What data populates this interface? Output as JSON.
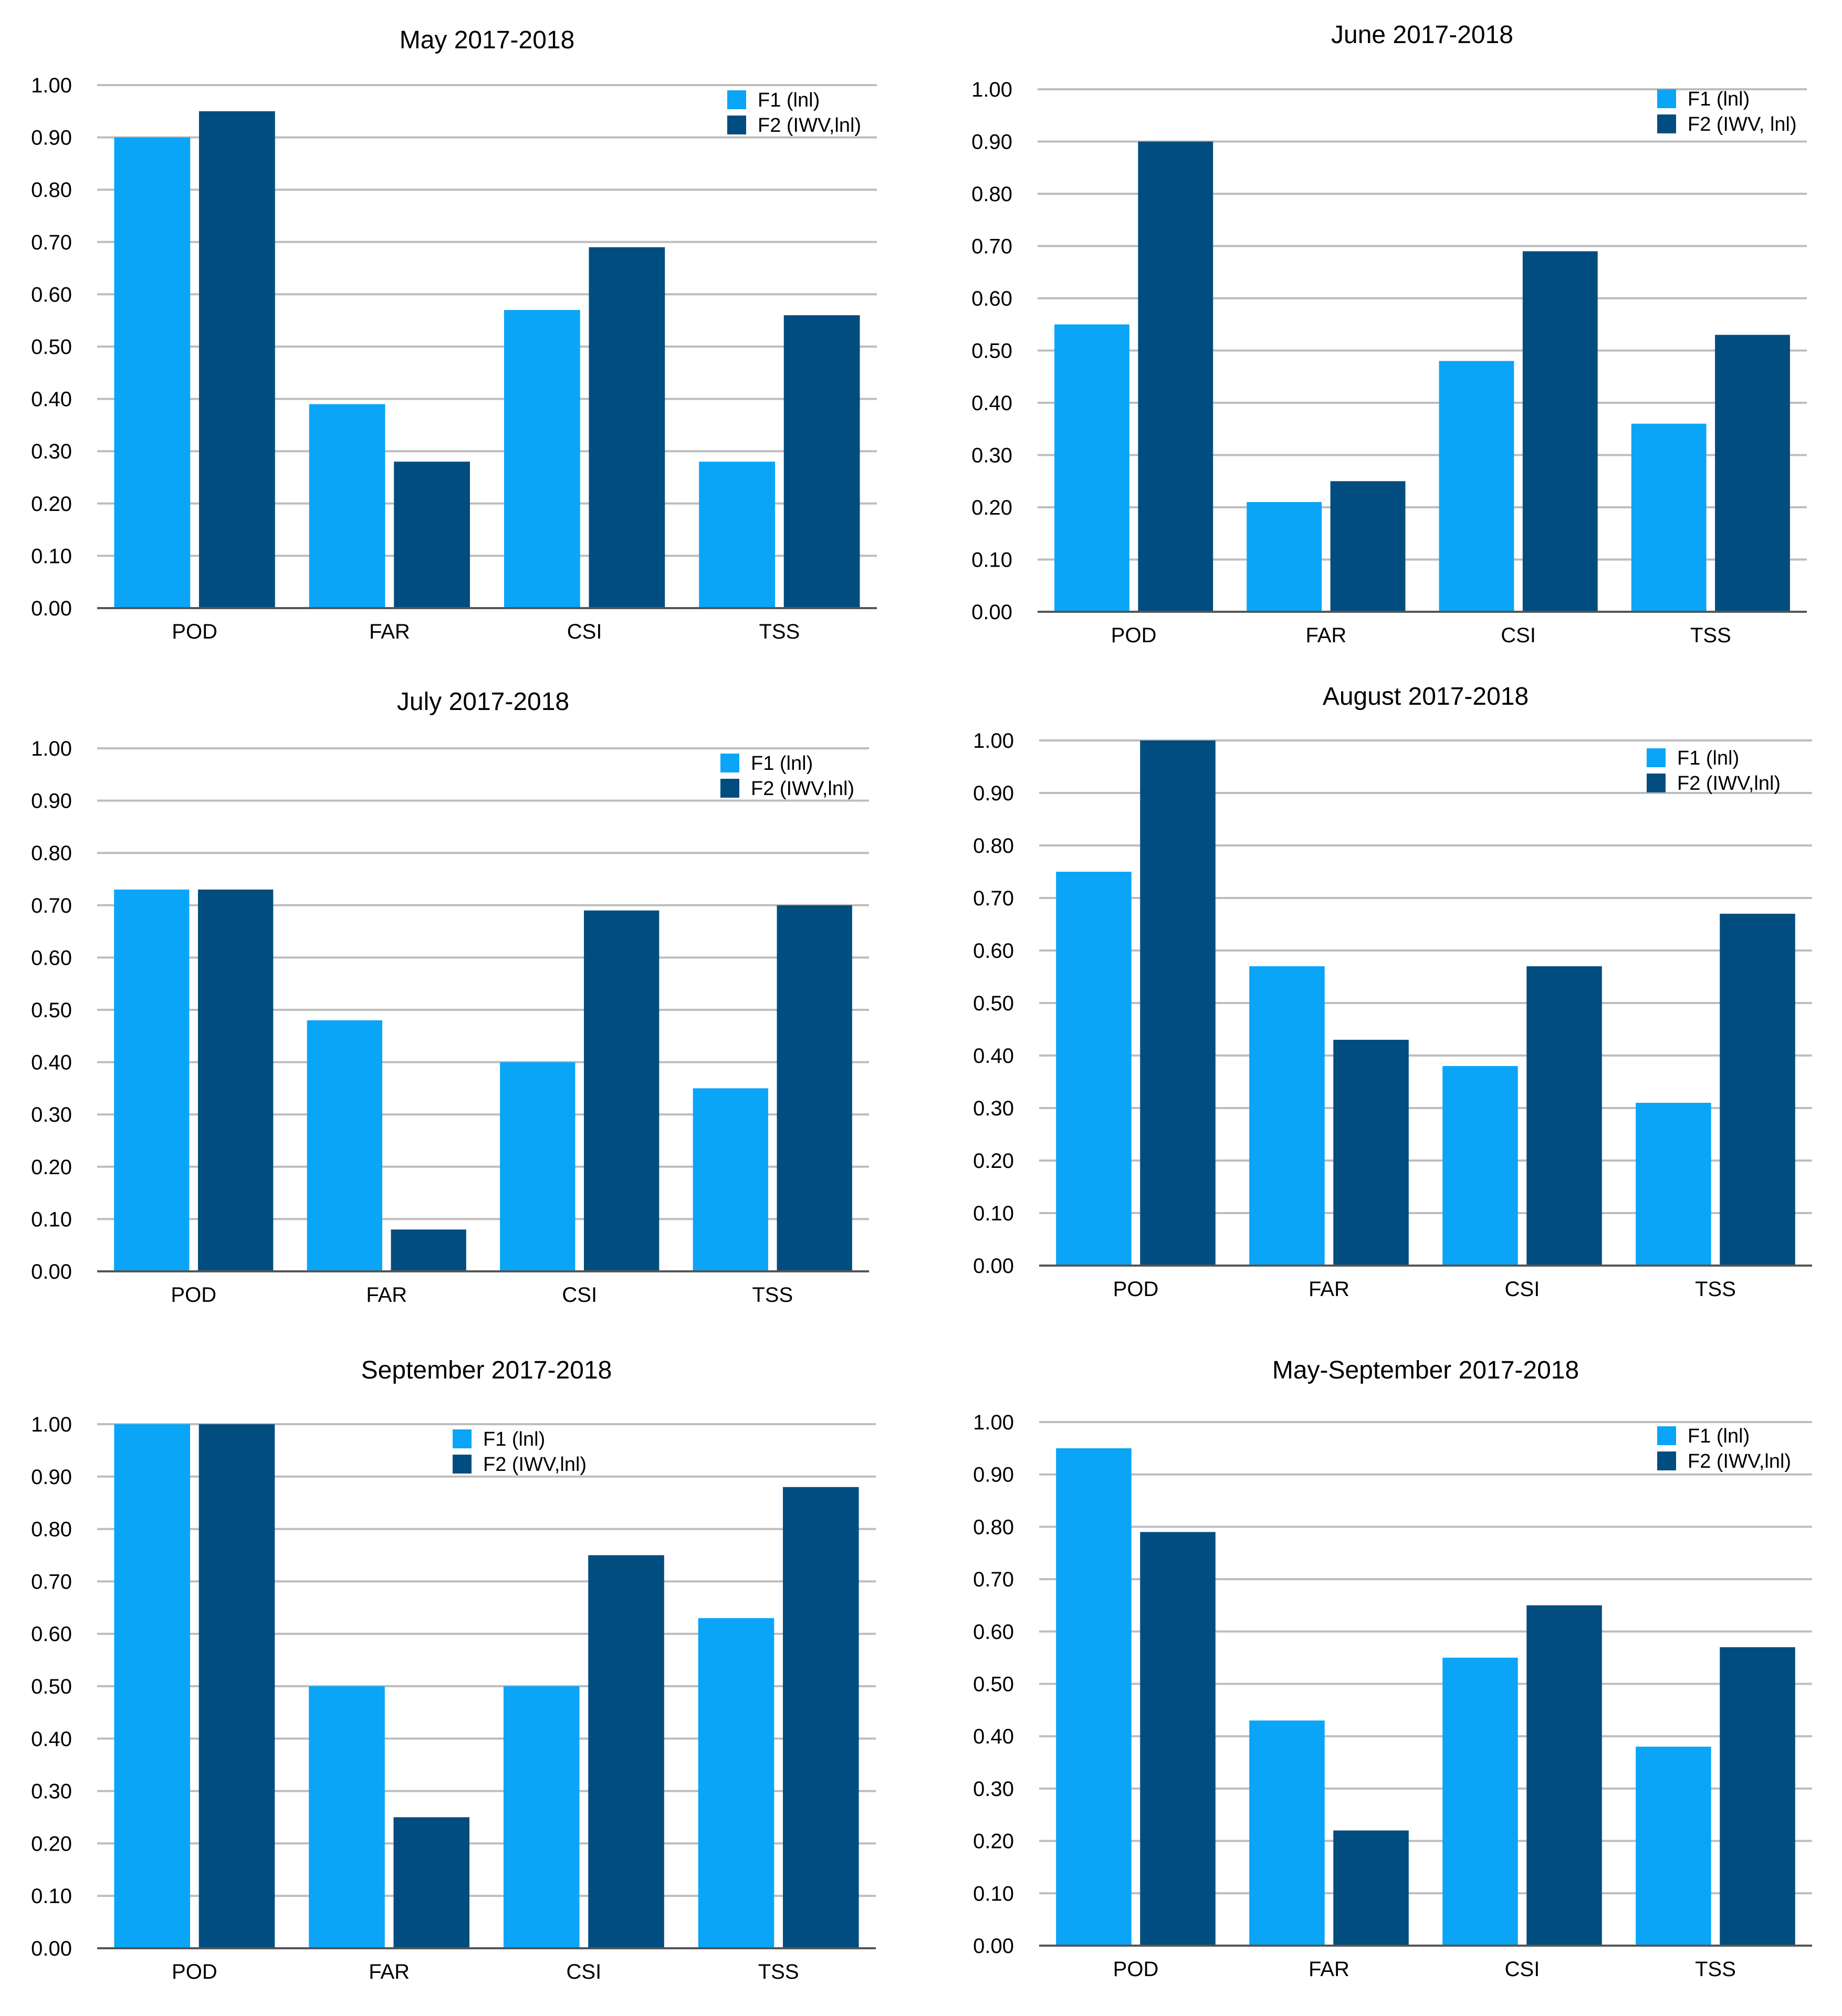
{
  "colors": {
    "F1": "#0aa5f7",
    "F2": "#024d80"
  },
  "chart_data": [
    {
      "type": "bar",
      "title": "May 2017-2018",
      "categories": [
        "POD",
        "FAR",
        "CSI",
        "TSS"
      ],
      "series": [
        {
          "name": "F1 (lnl)",
          "values": [
            0.9,
            0.39,
            0.57,
            0.28
          ]
        },
        {
          "name": "F2 (IWV,lnl)",
          "values": [
            0.95,
            0.28,
            0.69,
            0.56
          ]
        }
      ],
      "ylim": [
        0,
        1
      ],
      "yticks": [
        "0.00",
        "0.10",
        "0.20",
        "0.30",
        "0.40",
        "0.50",
        "0.60",
        "0.70",
        "0.80",
        "0.90",
        "1.00"
      ],
      "xlabel": "",
      "ylabel": "",
      "legend": "top-right"
    },
    {
      "type": "bar",
      "title": "June 2017-2018",
      "categories": [
        "POD",
        "FAR",
        "CSI",
        "TSS"
      ],
      "series": [
        {
          "name": "F1 (lnl)",
          "values": [
            0.55,
            0.21,
            0.48,
            0.36
          ]
        },
        {
          "name": "F2 (IWV, lnl)",
          "values": [
            0.9,
            0.25,
            0.69,
            0.53
          ]
        }
      ],
      "ylim": [
        0,
        1
      ],
      "yticks": [
        "0.00",
        "0.10",
        "0.20",
        "0.30",
        "0.40",
        "0.50",
        "0.60",
        "0.70",
        "0.80",
        "0.90",
        "1.00"
      ],
      "xlabel": "",
      "ylabel": "",
      "legend": "top-right"
    },
    {
      "type": "bar",
      "title": "July 2017-2018",
      "categories": [
        "POD",
        "FAR",
        "CSI",
        "TSS"
      ],
      "series": [
        {
          "name": "F1 (lnl)",
          "values": [
            0.73,
            0.48,
            0.4,
            0.35
          ]
        },
        {
          "name": "F2 (IWV,lnl)",
          "values": [
            0.73,
            0.08,
            0.69,
            0.7
          ]
        }
      ],
      "ylim": [
        0,
        1
      ],
      "yticks": [
        "0.00",
        "0.10",
        "0.20",
        "0.30",
        "0.40",
        "0.50",
        "0.60",
        "0.70",
        "0.80",
        "0.90",
        "1.00"
      ],
      "xlabel": "",
      "ylabel": "",
      "legend": "top-right"
    },
    {
      "type": "bar",
      "title": "August 2017-2018",
      "categories": [
        "POD",
        "FAR",
        "CSI",
        "TSS"
      ],
      "series": [
        {
          "name": "F1 (lnl)",
          "values": [
            0.75,
            0.57,
            0.38,
            0.31
          ]
        },
        {
          "name": "F2 (IWV,lnl)",
          "values": [
            1.0,
            0.43,
            0.57,
            0.67
          ]
        }
      ],
      "ylim": [
        0,
        1
      ],
      "yticks": [
        "0.00",
        "0.10",
        "0.20",
        "0.30",
        "0.40",
        "0.50",
        "0.60",
        "0.70",
        "0.80",
        "0.90",
        "1.00"
      ],
      "xlabel": "",
      "ylabel": "",
      "legend": "top-right"
    },
    {
      "type": "bar",
      "title": "September 2017-2018",
      "categories": [
        "POD",
        "FAR",
        "CSI",
        "TSS"
      ],
      "series": [
        {
          "name": "F1 (lnl)",
          "values": [
            1.0,
            0.5,
            0.5,
            0.63
          ]
        },
        {
          "name": "F2 (IWV,lnl)",
          "values": [
            1.0,
            0.25,
            0.75,
            0.88
          ]
        }
      ],
      "ylim": [
        0,
        1
      ],
      "yticks": [
        "0.00",
        "0.10",
        "0.20",
        "0.30",
        "0.40",
        "0.50",
        "0.60",
        "0.70",
        "0.80",
        "0.90",
        "1.00"
      ],
      "xlabel": "",
      "ylabel": "",
      "legend": "top-center"
    },
    {
      "type": "bar",
      "title": "May-September 2017-2018",
      "categories": [
        "POD",
        "FAR",
        "CSI",
        "TSS"
      ],
      "series": [
        {
          "name": "F1 (lnl)",
          "values": [
            0.95,
            0.43,
            0.55,
            0.38
          ]
        },
        {
          "name": "F2 (IWV,lnl)",
          "values": [
            0.79,
            0.22,
            0.65,
            0.57
          ]
        }
      ],
      "ylim": [
        0,
        1
      ],
      "yticks": [
        "0.00",
        "0.10",
        "0.20",
        "0.30",
        "0.40",
        "0.50",
        "0.60",
        "0.70",
        "0.80",
        "0.90",
        "1.00"
      ],
      "xlabel": "",
      "ylabel": "",
      "legend": "top-right"
    }
  ]
}
